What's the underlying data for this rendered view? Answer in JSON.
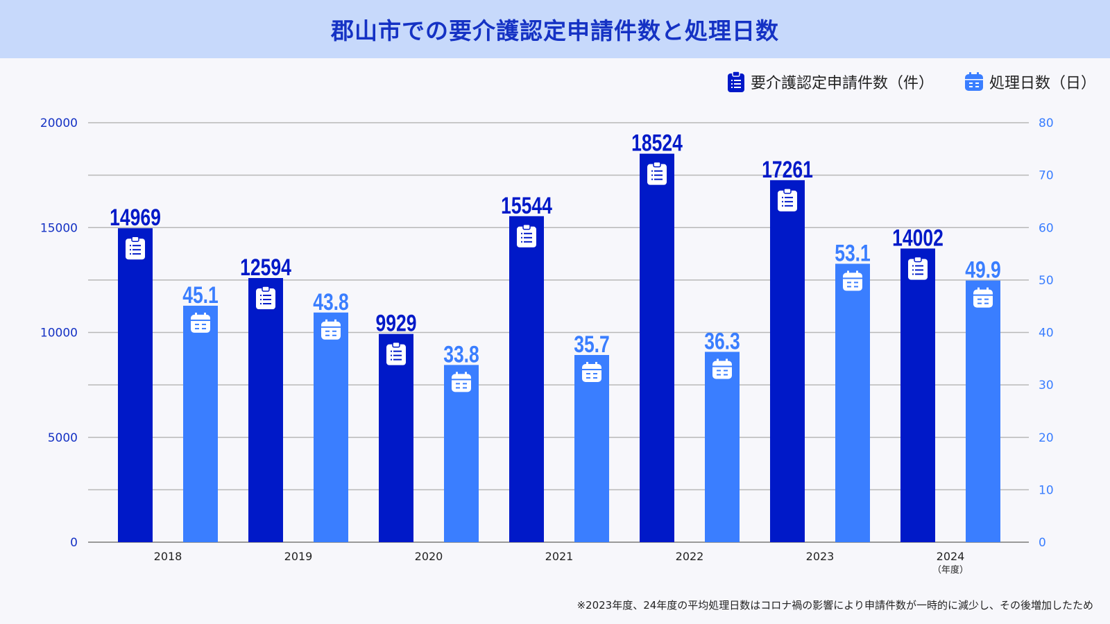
{
  "chart_data": {
    "type": "bar",
    "title": "郡山市での要介護認定申請件数と処理日数",
    "categories": [
      "2018",
      "2019",
      "2020",
      "2021",
      "2022",
      "2023",
      "2024"
    ],
    "x_unit_label": "（年度）",
    "series": [
      {
        "name": "要介護認定申請件数（件）",
        "axis": "left",
        "color": "#0019c8",
        "icon": "clipboard-icon",
        "values": [
          14969,
          12594,
          9929,
          15544,
          18524,
          17261,
          14002
        ],
        "labels": [
          "14969",
          "12594",
          "9929",
          "15544",
          "18524",
          "17261",
          "14002"
        ]
      },
      {
        "name": "処理日数（日）",
        "axis": "right",
        "color": "#3a7eff",
        "icon": "calendar-icon",
        "values": [
          45.1,
          43.8,
          33.8,
          35.7,
          36.3,
          53.1,
          49.9
        ],
        "labels": [
          "45.1",
          "43.8",
          "33.8",
          "35.7",
          "36.3",
          "53.1",
          "49.9"
        ]
      }
    ],
    "left_axis": {
      "ylim": [
        0,
        20000
      ],
      "ticks": [
        "0",
        "5000",
        "10000",
        "15000",
        "20000"
      ],
      "color": "#1532c4"
    },
    "right_axis": {
      "ylim": [
        0,
        80
      ],
      "ticks": [
        "0",
        "10",
        "20",
        "30",
        "40",
        "50",
        "60",
        "70",
        "80"
      ],
      "color": "#3a7eff"
    },
    "grid": true,
    "legend_position": "top-right"
  },
  "footnote": "※2023年度、24年度の平均処理日数はコロナ禍の影響により申請件数が一時的に減少し、その後増加したため"
}
